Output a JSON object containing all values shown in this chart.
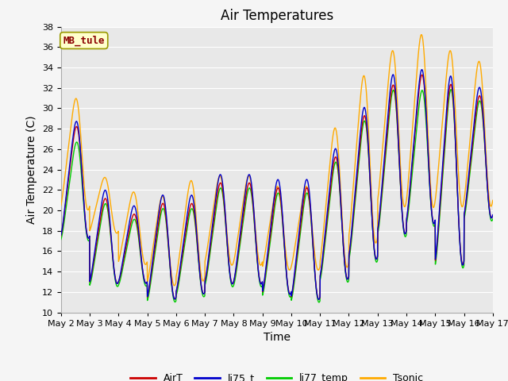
{
  "title": "Air Temperatures",
  "xlabel": "Time",
  "ylabel": "Air Temperature (C)",
  "ylim": [
    10,
    38
  ],
  "yticks": [
    10,
    12,
    14,
    16,
    18,
    20,
    22,
    24,
    26,
    28,
    30,
    32,
    34,
    36,
    38
  ],
  "xtick_labels": [
    "May 2",
    "May 3",
    "May 4",
    "May 5",
    "May 6",
    "May 7",
    "May 8",
    "May 9",
    "May 10",
    "May 11",
    "May 12",
    "May 13",
    "May 14",
    "May 15",
    "May 16",
    "May 17"
  ],
  "annotation_text": "MB_tule",
  "colors": {
    "AirT": "#cc0000",
    "li75_t": "#0000cc",
    "li77_temp": "#00cc00",
    "Tsonic": "#ffaa00"
  },
  "background_color": "#e8e8e8",
  "grid_color": "#ffffff",
  "title_fontsize": 12,
  "label_fontsize": 10,
  "tick_fontsize": 8
}
